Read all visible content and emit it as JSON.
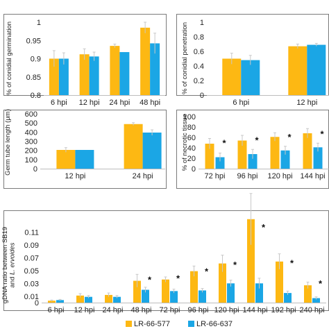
{
  "colors": {
    "series_a": "#FDB813",
    "series_b": "#1BA6E5",
    "frame": "#7a7a7a",
    "axis": "#bdbdbd",
    "error": "#c8c8c8"
  },
  "legend": {
    "items": [
      {
        "label": "LR-66-577"
      },
      {
        "label": "LR-66-637"
      }
    ]
  },
  "chart_data": [
    {
      "id": "panel-a",
      "type": "bar",
      "ylabel": "% of conidial germination",
      "ylim": [
        0.8,
        1
      ],
      "yticks": [
        "0.8",
        "0.85",
        "0.9",
        "0.95",
        "1"
      ],
      "categories": [
        "6 hpi",
        "12 hpi",
        "24 hpi",
        "48 hpi"
      ],
      "series": [
        {
          "values": [
            0.9,
            0.912,
            0.935,
            0.985
          ],
          "errors": [
            0.022,
            0.015,
            0.005,
            0.015
          ]
        },
        {
          "values": [
            0.9,
            0.906,
            0.918,
            0.942
          ],
          "errors": [
            0.016,
            0.012,
            0.0,
            0.028
          ]
        }
      ]
    },
    {
      "id": "panel-b",
      "type": "bar",
      "ylabel": "% of conidial penetration",
      "ylim": [
        0,
        1
      ],
      "yticks": [
        "0",
        "0.2",
        "0.4",
        "0.6",
        "0.8",
        "1"
      ],
      "categories": [
        "6 hpi",
        "12 hpi"
      ],
      "series": [
        {
          "values": [
            0.5,
            0.67
          ],
          "errors": [
            0.075,
            0.03
          ]
        },
        {
          "values": [
            0.48,
            0.69
          ],
          "errors": [
            0.065,
            0.02
          ]
        }
      ]
    },
    {
      "id": "panel-c",
      "type": "bar",
      "ylabel": "Germ tube length (μm)",
      "ylim": [
        0,
        600
      ],
      "yticks": [
        "0",
        "100",
        "200",
        "300",
        "400",
        "500",
        "600"
      ],
      "categories": [
        "12 hpi",
        "24 hpi"
      ],
      "series": [
        {
          "values": [
            205,
            488
          ],
          "errors": [
            25,
            15
          ]
        },
        {
          "values": [
            205,
            395
          ],
          "errors": [
            0,
            30
          ]
        }
      ]
    },
    {
      "id": "panel-d",
      "type": "bar",
      "ylabel": "% of necrotic tissue",
      "ylim": [
        0,
        100
      ],
      "yticks": [
        "0",
        "20",
        "40",
        "60",
        "80",
        "100"
      ],
      "categories": [
        "72 hpi",
        "96 hpi",
        "120 hpi",
        "144 hpi"
      ],
      "series": [
        {
          "values": [
            48,
            54,
            61,
            68
          ],
          "errors": [
            10,
            10,
            8,
            9
          ]
        },
        {
          "values": [
            22,
            28,
            35,
            41
          ],
          "errors": [
            8,
            9,
            8,
            8
          ]
        }
      ],
      "significant": [
        "*",
        "*",
        "*",
        "*"
      ]
    },
    {
      "id": "panel-e",
      "type": "bar",
      "ylabel_parts": [
        "gDNA ratio between SB19",
        "and ",
        "L. ervoides"
      ],
      "ylim": [
        0,
        0.12
      ],
      "yticks": [
        "0",
        "0.01",
        "0.03",
        "0.05",
        "0.07",
        "0.09",
        "0.11"
      ],
      "ytick_values": [
        0,
        0.01,
        0.03,
        0.05,
        0.07,
        0.09,
        0.11
      ],
      "categories": [
        "6 hpi",
        "12 hpi",
        "24 hpi",
        "48 hpi",
        "72 hpi",
        "96 hpi",
        "120 hpi",
        "144 hpi",
        "192 hpi",
        "240 hpi"
      ],
      "series": [
        {
          "values": [
            0.003,
            0.011,
            0.012,
            0.034,
            0.036,
            0.049,
            0.061,
            0.13,
            0.064,
            0.027
          ],
          "errors": [
            0.001,
            0.003,
            0.003,
            0.01,
            0.004,
            0.008,
            0.013,
            0.04,
            0.012,
            0.005
          ]
        },
        {
          "values": [
            0.004,
            0.009,
            0.009,
            0.02,
            0.018,
            0.019,
            0.03,
            0.03,
            0.015,
            0.007
          ],
          "errors": [
            0.001,
            0.002,
            0.002,
            0.004,
            0.003,
            0.003,
            0.005,
            0.008,
            0.003,
            0.002
          ]
        }
      ],
      "significant": [
        "",
        "",
        "",
        "*",
        "*",
        "*",
        "*",
        "*",
        "*",
        "*"
      ]
    }
  ]
}
